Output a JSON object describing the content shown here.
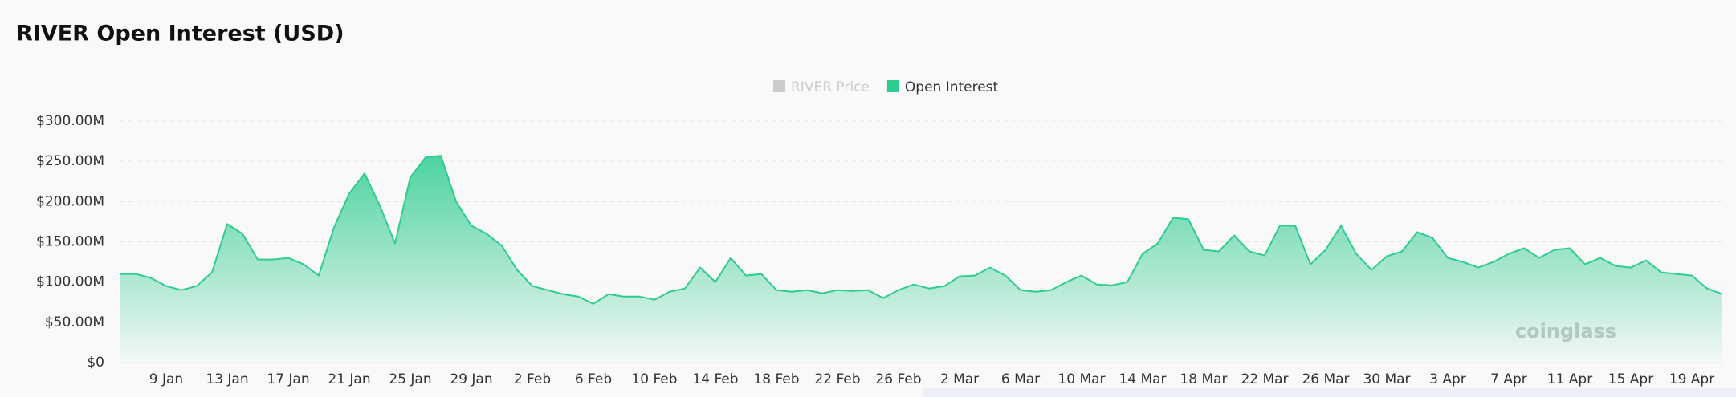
{
  "chart_data": {
    "type": "area",
    "title": "RIVER Open Interest (USD)",
    "watermark": "coinglass",
    "categories": [
      null,
      null,
      null,
      "9 Jan",
      null,
      null,
      null,
      "13 Jan",
      null,
      null,
      null,
      "17 Jan",
      null,
      null,
      null,
      "21 Jan",
      null,
      null,
      null,
      "25 Jan",
      null,
      null,
      null,
      "29 Jan",
      null,
      null,
      null,
      "2 Feb",
      null,
      null,
      null,
      "6 Feb",
      null,
      null,
      null,
      "10 Feb",
      null,
      null,
      null,
      "14 Feb",
      null,
      null,
      null,
      "18 Feb",
      null,
      null,
      null,
      "22 Feb",
      null,
      null,
      null,
      "26 Feb",
      null,
      null,
      null,
      "2 Mar",
      null,
      null,
      null,
      "6 Mar",
      null,
      null,
      null,
      "10 Mar",
      null,
      null,
      null,
      "14 Mar",
      null,
      null,
      null,
      "18 Mar",
      null,
      null,
      null,
      "22 Mar",
      null,
      null,
      null,
      "26 Mar",
      null,
      null,
      null,
      "30 Mar",
      null,
      null,
      null,
      "3 Apr",
      null,
      null,
      null,
      "7 Apr",
      null,
      null,
      null,
      "11 Apr",
      null,
      null,
      null,
      "15 Apr",
      null,
      null,
      null,
      "19 Apr",
      null,
      null
    ],
    "series": [
      {
        "name": "RIVER Price",
        "color": "#cccccc",
        "visible": false
      },
      {
        "name": "Open Interest",
        "color": "#2ecc8f",
        "visible": true,
        "values": [
          110000000,
          110000000,
          105000000,
          95000000,
          90000000,
          95000000,
          112000000,
          172000000,
          160000000,
          128000000,
          128000000,
          130000000,
          122000000,
          108000000,
          168000000,
          210000000,
          235000000,
          195000000,
          148000000,
          230000000,
          255000000,
          257000000,
          200000000,
          170000000,
          160000000,
          145000000,
          115000000,
          95000000,
          90000000,
          85000000,
          82000000,
          73000000,
          85000000,
          82000000,
          82000000,
          78000000,
          88000000,
          92000000,
          118000000,
          100000000,
          130000000,
          108000000,
          110000000,
          90000000,
          88000000,
          90000000,
          86000000,
          90000000,
          89000000,
          90000000,
          80000000,
          90000000,
          97000000,
          92000000,
          95000000,
          107000000,
          108000000,
          118000000,
          108000000,
          90000000,
          88000000,
          90000000,
          100000000,
          108000000,
          97000000,
          96000000,
          100000000,
          135000000,
          148000000,
          180000000,
          178000000,
          140000000,
          138000000,
          158000000,
          138000000,
          133000000,
          170000000,
          170000000,
          122000000,
          140000000,
          170000000,
          135000000,
          115000000,
          132000000,
          138000000,
          162000000,
          155000000,
          130000000,
          125000000,
          118000000,
          125000000,
          135000000,
          142000000,
          130000000,
          140000000,
          142000000,
          122000000,
          130000000,
          120000000,
          118000000,
          127000000,
          112000000,
          110000000,
          108000000,
          92000000,
          85000000
        ]
      }
    ],
    "ylim": [
      0,
      300000000
    ],
    "yticks": [
      {
        "value": 0,
        "label": "$0"
      },
      {
        "value": 50000000,
        "label": "$50.00M"
      },
      {
        "value": 100000000,
        "label": "$100.00M"
      },
      {
        "value": 150000000,
        "label": "$150.00M"
      },
      {
        "value": 200000000,
        "label": "$200.00M"
      },
      {
        "value": 250000000,
        "label": "$250.00M"
      },
      {
        "value": 300000000,
        "label": "$300.00M"
      }
    ],
    "grid": true
  }
}
